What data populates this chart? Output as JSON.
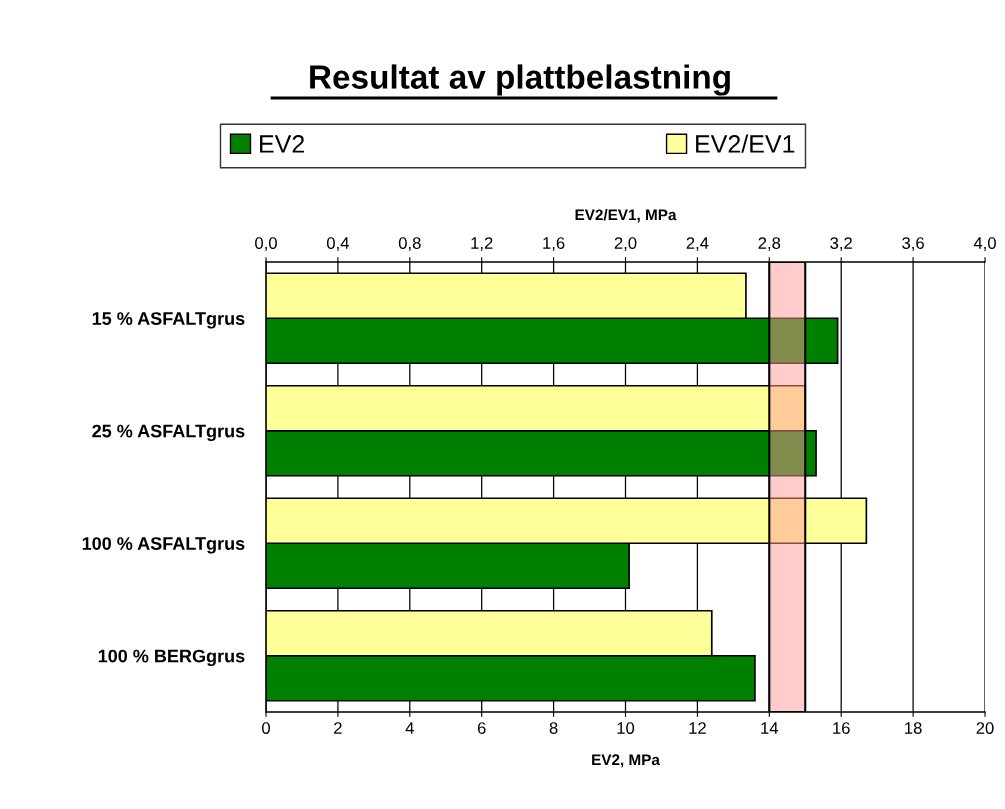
{
  "chart_data": {
    "type": "bar",
    "orientation": "horizontal",
    "title": "Resultat av plattbelastning",
    "categories": [
      "15 % ASFALTgrus",
      "25 % ASFALTgrus",
      "100 % ASFALTgrus",
      "100 % BERGgrus"
    ],
    "series": [
      {
        "name": "EV2/EV1",
        "color": "#ffff99",
        "axis": "x2",
        "values": [
          2.67,
          3.0,
          3.34,
          2.48
        ]
      },
      {
        "name": "EV2",
        "color": "#008000",
        "values": [
          15.9,
          15.3,
          10.1,
          13.6
        ]
      }
    ],
    "xlabel": "EV2, MPa",
    "x2label": "EV2/EV1, MPa",
    "xlim": [
      0,
      20
    ],
    "xticks": [
      0,
      2,
      4,
      6,
      8,
      10,
      12,
      14,
      16,
      18,
      20
    ],
    "x2lim": [
      0,
      4
    ],
    "x2ticks": [
      {
        "value": 0,
        "label": "0,0"
      },
      {
        "value": 0.4,
        "label": "0,4"
      },
      {
        "value": 0.8,
        "label": "0,8"
      },
      {
        "value": 1.2,
        "label": "1,2"
      },
      {
        "value": 1.6,
        "label": "1,6"
      },
      {
        "value": 2.0,
        "label": "2,0"
      },
      {
        "value": 2.4,
        "label": "2,4"
      },
      {
        "value": 2.8,
        "label": "2,8"
      },
      {
        "value": 3.2,
        "label": "3,2"
      },
      {
        "value": 3.6,
        "label": "3,6"
      },
      {
        "value": 4.0,
        "label": "4,0"
      }
    ],
    "bands": [
      {
        "axis": "x",
        "from": 14,
        "to": 15,
        "color": "#ff9999"
      }
    ],
    "grid": "x",
    "legend": "top"
  }
}
